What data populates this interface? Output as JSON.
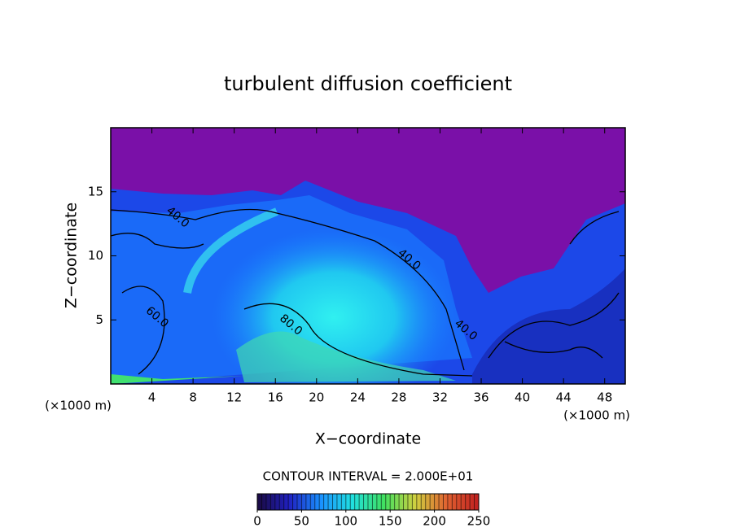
{
  "chart_data": {
    "type": "contour",
    "title": "turbulent diffusion coefficient",
    "xlabel": "X−coordinate",
    "ylabel": "Z−coordinate",
    "x_unit": "(×1000 m)",
    "xlim": [
      0,
      50
    ],
    "ylim": [
      0,
      20
    ],
    "xticks": [
      4,
      8,
      12,
      16,
      20,
      24,
      28,
      32,
      36,
      40,
      44,
      48
    ],
    "yticks": [
      5,
      10,
      15
    ],
    "contour_labels": [
      {
        "label": "40.0",
        "x": 6.5,
        "z": 13
      },
      {
        "label": "40.0",
        "x": 29,
        "z": 9.7
      },
      {
        "label": "80.0",
        "x": 17.5,
        "z": 4.6
      },
      {
        "label": "60.0",
        "x": 4.5,
        "z": 5.2
      },
      {
        "label": "40.0",
        "x": 34.5,
        "z": 4.2
      }
    ],
    "annotation": "CONTOUR INTERVAL = 2.000E+01",
    "colorbar": {
      "clim": [
        0,
        250
      ],
      "ticks": [
        0,
        50,
        100,
        150,
        200,
        250
      ],
      "colors": [
        "#1a0a40",
        "#2020c0",
        "#1a90ff",
        "#20e0e0",
        "#40e060",
        "#d0d040",
        "#e06030",
        "#c02020"
      ]
    }
  }
}
